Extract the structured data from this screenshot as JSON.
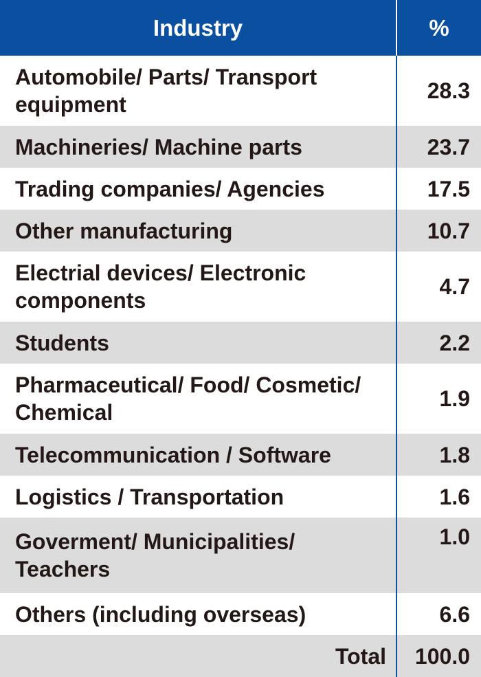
{
  "table": {
    "headers": {
      "industry": "Industry",
      "percent": "%"
    },
    "rows": [
      {
        "industry": "Automobile/ Parts/ Transport equipment",
        "percent": "28.3"
      },
      {
        "industry": "Machineries/ Machine parts",
        "percent": "23.7"
      },
      {
        "industry": "Trading companies/ Agencies",
        "percent": "17.5"
      },
      {
        "industry": "Other manufacturing",
        "percent": "10.7"
      },
      {
        "industry": "Electrial devices/ Electronic components",
        "percent": "4.7"
      },
      {
        "industry": "Students",
        "percent": "2.2"
      },
      {
        "industry": "Pharmaceutical/ Food/ Cosmetic/ Chemical",
        "percent": "1.9"
      },
      {
        "industry": "Telecommunication / Software",
        "percent": "1.8"
      },
      {
        "industry": "Logistics / Transportation",
        "percent": "1.6"
      },
      {
        "industry": "Goverment/ Municipalities/ Teachers",
        "percent": "1.0"
      },
      {
        "industry": "Others (including overseas)",
        "percent": "6.6"
      }
    ],
    "total": {
      "label": "Total",
      "percent": "100.0"
    }
  },
  "colors": {
    "header_bg": "#0a4fa0",
    "shade": "#dcdcdc",
    "text": "#231815"
  }
}
